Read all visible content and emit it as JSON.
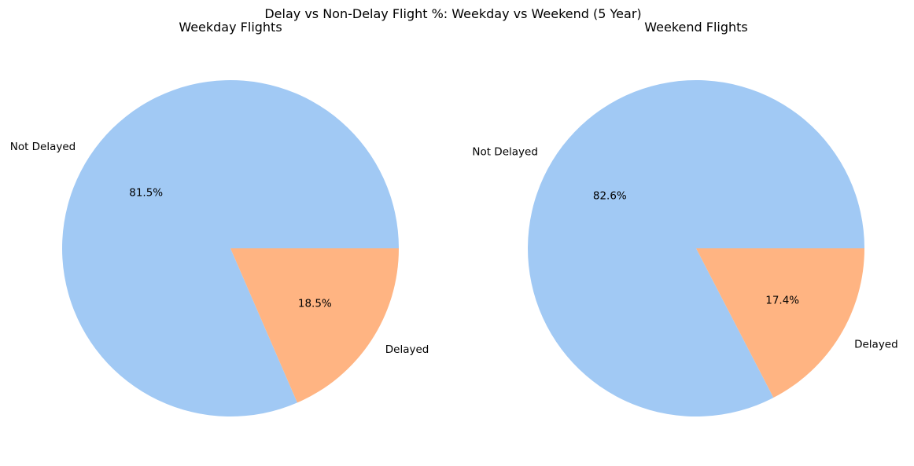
{
  "figure_title": "Delay vs Non-Delay Flight %: Weekday vs Weekend (5 Year)",
  "colors": {
    "not_delayed": "#a1c9f4",
    "delayed": "#ffb482"
  },
  "chart_data": [
    {
      "type": "pie",
      "title": "Weekday Flights",
      "slices": [
        {
          "label": "Not Delayed",
          "value": 81.5,
          "pct_label": "81.5%",
          "color": "#a1c9f4"
        },
        {
          "label": "Delayed",
          "value": 18.5,
          "pct_label": "18.5%",
          "color": "#ffb482"
        }
      ],
      "startangle": 0,
      "legend": "none"
    },
    {
      "type": "pie",
      "title": "Weekend Flights",
      "slices": [
        {
          "label": "Not Delayed",
          "value": 82.6,
          "pct_label": "82.6%",
          "color": "#a1c9f4"
        },
        {
          "label": "Delayed",
          "value": 17.4,
          "pct_label": "17.4%",
          "color": "#ffb482"
        }
      ],
      "startangle": 0,
      "legend": "none"
    }
  ]
}
